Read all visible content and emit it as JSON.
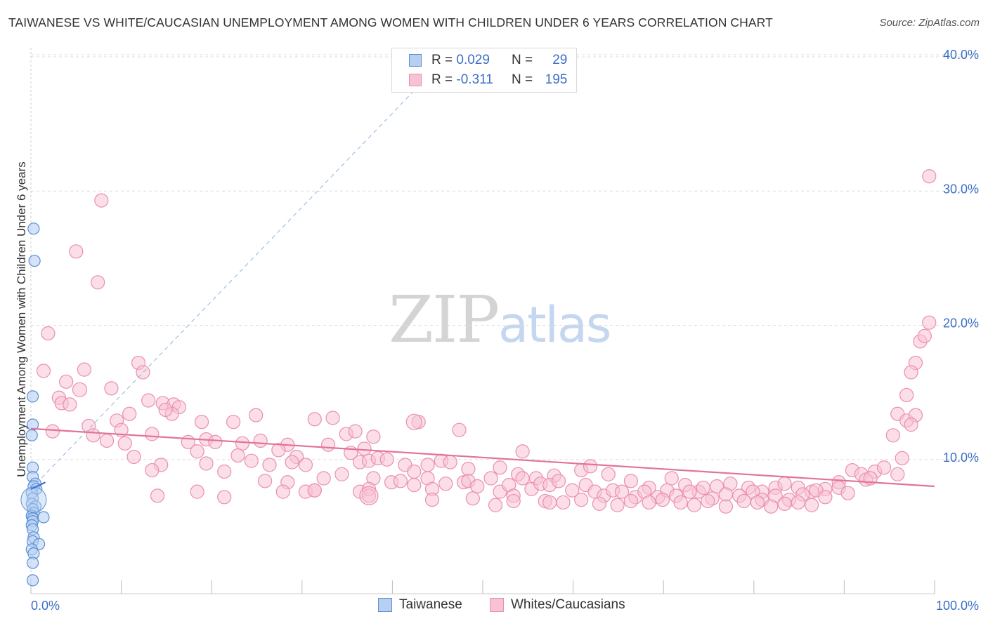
{
  "title": "TAIWANESE VS WHITE/CAUCASIAN UNEMPLOYMENT AMONG WOMEN WITH CHILDREN UNDER 6 YEARS CORRELATION CHART",
  "source": "Source: ZipAtlas.com",
  "watermark": {
    "zip": "ZIP",
    "atlas": "atlas"
  },
  "colors": {
    "blue_fill": "#b7d0f2",
    "blue_stroke": "#5b8fd6",
    "blue_line": "#3a72d4",
    "pink_fill": "#f7c3d3",
    "pink_stroke": "#ea8fae",
    "pink_line": "#e2739a",
    "tick_label": "#3b6fc5",
    "grid": "#dddddd"
  },
  "legend": {
    "rows": [
      {
        "series": "Taiwanese",
        "r_label": "R =",
        "r_value": "0.029",
        "n_label": "N =",
        "n_value": "29"
      },
      {
        "series": "Whites/Caucasians",
        "r_label": "R =",
        "r_value": "-0.311",
        "n_label": "N =",
        "n_value": "195"
      }
    ]
  },
  "chart_data": {
    "type": "scatter",
    "title": "TAIWANESE VS WHITE/CAUCASIAN UNEMPLOYMENT AMONG WOMEN WITH CHILDREN UNDER 6 YEARS CORRELATION CHART",
    "xlabel": "",
    "ylabel": "Unemployment Among Women with Children Under 6 years",
    "xlim": [
      0,
      100
    ],
    "ylim": [
      0,
      40
    ],
    "x_tick_labels": [
      "0.0%",
      "100.0%"
    ],
    "y_ticks": [
      10,
      20,
      30,
      40
    ],
    "y_tick_labels": [
      "10.0%",
      "20.0%",
      "30.0%",
      "40.0%"
    ],
    "legend_placement": "top-center",
    "series": [
      {
        "name": "Taiwanese",
        "r": 0.029,
        "n": 29,
        "points": [
          [
            0.3,
            27.2
          ],
          [
            0.4,
            24.8
          ],
          [
            0.2,
            14.7
          ],
          [
            0.2,
            12.6
          ],
          [
            0.1,
            11.8
          ],
          [
            0.2,
            9.4
          ],
          [
            0.2,
            8.7
          ],
          [
            0.5,
            8.2
          ],
          [
            0.3,
            8.0
          ],
          [
            0.6,
            7.8
          ],
          [
            0.1,
            7.5
          ],
          [
            0.2,
            7.1
          ],
          [
            0.1,
            6.7
          ],
          [
            0.5,
            6.5
          ],
          [
            0.2,
            6.3
          ],
          [
            0.3,
            6.0
          ],
          [
            0.1,
            5.8
          ],
          [
            0.2,
            5.6
          ],
          [
            1.4,
            5.7
          ],
          [
            0.2,
            5.4
          ],
          [
            0.1,
            5.1
          ],
          [
            0.2,
            4.8
          ],
          [
            0.3,
            4.2
          ],
          [
            0.2,
            3.9
          ],
          [
            0.9,
            3.7
          ],
          [
            0.1,
            3.3
          ],
          [
            0.3,
            3.0
          ],
          [
            0.2,
            2.3
          ],
          [
            0.2,
            1.0
          ]
        ],
        "trend_solid": [
          [
            0,
            7.8
          ],
          [
            1.6,
            8.3
          ]
        ],
        "trend_dashed": [
          [
            0,
            7.8
          ],
          [
            46,
            40
          ]
        ]
      },
      {
        "name": "Whites/Caucasians",
        "r": -0.311,
        "n": 195,
        "trend": [
          [
            0,
            12.3
          ],
          [
            100,
            8.0
          ]
        ],
        "points": [
          [
            7.8,
            29.3
          ],
          [
            5.0,
            25.5
          ],
          [
            7.4,
            23.2
          ],
          [
            1.9,
            19.4
          ],
          [
            1.4,
            16.6
          ],
          [
            5.9,
            16.7
          ],
          [
            11.9,
            17.2
          ],
          [
            12.4,
            16.5
          ],
          [
            3.9,
            15.8
          ],
          [
            5.4,
            15.2
          ],
          [
            8.9,
            15.3
          ],
          [
            3.1,
            14.6
          ],
          [
            3.4,
            14.2
          ],
          [
            4.3,
            14.1
          ],
          [
            13.0,
            14.4
          ],
          [
            14.6,
            14.2
          ],
          [
            15.8,
            14.1
          ],
          [
            16.4,
            13.9
          ],
          [
            10.9,
            13.4
          ],
          [
            15.6,
            13.4
          ],
          [
            6.4,
            12.5
          ],
          [
            9.5,
            12.9
          ],
          [
            18.9,
            12.8
          ],
          [
            22.4,
            12.8
          ],
          [
            24.9,
            13.3
          ],
          [
            31.4,
            13.0
          ],
          [
            33.4,
            13.1
          ],
          [
            42.9,
            12.8
          ],
          [
            2.4,
            12.1
          ],
          [
            6.9,
            11.8
          ],
          [
            10.0,
            12.2
          ],
          [
            13.4,
            11.9
          ],
          [
            8.4,
            11.4
          ],
          [
            10.4,
            11.2
          ],
          [
            17.4,
            11.3
          ],
          [
            19.4,
            11.5
          ],
          [
            20.4,
            11.3
          ],
          [
            23.4,
            11.2
          ],
          [
            25.4,
            11.4
          ],
          [
            28.4,
            11.1
          ],
          [
            32.9,
            11.1
          ],
          [
            34.9,
            11.9
          ],
          [
            35.9,
            12.1
          ],
          [
            37.9,
            11.7
          ],
          [
            47.4,
            12.2
          ],
          [
            11.4,
            10.2
          ],
          [
            18.4,
            10.6
          ],
          [
            22.9,
            10.3
          ],
          [
            27.4,
            10.7
          ],
          [
            29.4,
            10.2
          ],
          [
            35.4,
            10.5
          ],
          [
            36.9,
            10.8
          ],
          [
            54.4,
            10.6
          ],
          [
            14.4,
            9.6
          ],
          [
            19.4,
            9.7
          ],
          [
            26.4,
            9.6
          ],
          [
            24.4,
            9.9
          ],
          [
            28.9,
            9.8
          ],
          [
            30.4,
            9.6
          ],
          [
            36.4,
            9.8
          ],
          [
            37.4,
            9.9
          ],
          [
            38.4,
            10.1
          ],
          [
            39.4,
            10.0
          ],
          [
            41.4,
            9.6
          ],
          [
            42.4,
            9.1
          ],
          [
            43.9,
            9.6
          ],
          [
            45.4,
            9.9
          ],
          [
            46.4,
            9.8
          ],
          [
            48.4,
            9.3
          ],
          [
            51.9,
            9.4
          ],
          [
            53.9,
            8.9
          ],
          [
            55.9,
            8.6
          ],
          [
            57.9,
            8.8
          ],
          [
            60.9,
            9.2
          ],
          [
            61.9,
            9.5
          ],
          [
            63.9,
            8.9
          ],
          [
            66.4,
            8.4
          ],
          [
            68.4,
            7.9
          ],
          [
            70.9,
            8.6
          ],
          [
            72.4,
            8.1
          ],
          [
            73.9,
            7.6
          ],
          [
            75.9,
            8.0
          ],
          [
            77.4,
            8.2
          ],
          [
            79.4,
            7.9
          ],
          [
            80.9,
            7.6
          ],
          [
            82.4,
            7.9
          ],
          [
            83.4,
            8.2
          ],
          [
            84.9,
            7.9
          ],
          [
            86.4,
            7.6
          ],
          [
            87.9,
            7.8
          ],
          [
            89.4,
            8.3
          ],
          [
            90.9,
            9.2
          ],
          [
            91.9,
            8.9
          ],
          [
            92.4,
            8.5
          ],
          [
            93.4,
            9.1
          ],
          [
            94.4,
            9.4
          ],
          [
            95.9,
            8.9
          ],
          [
            96.4,
            10.1
          ],
          [
            92.9,
            8.6
          ],
          [
            13.4,
            9.2
          ],
          [
            14.9,
            13.7
          ],
          [
            21.4,
            9.1
          ],
          [
            25.9,
            8.4
          ],
          [
            28.4,
            8.3
          ],
          [
            30.4,
            7.6
          ],
          [
            31.4,
            7.7
          ],
          [
            32.4,
            8.6
          ],
          [
            34.4,
            8.9
          ],
          [
            36.4,
            7.6
          ],
          [
            37.9,
            8.6
          ],
          [
            39.9,
            8.3
          ],
          [
            40.9,
            8.4
          ],
          [
            42.4,
            8.1
          ],
          [
            43.9,
            8.6
          ],
          [
            44.4,
            7.8
          ],
          [
            45.9,
            8.2
          ],
          [
            47.9,
            8.3
          ],
          [
            48.4,
            8.4
          ],
          [
            49.4,
            8.0
          ],
          [
            50.9,
            8.6
          ],
          [
            51.9,
            7.6
          ],
          [
            52.9,
            8.1
          ],
          [
            53.4,
            7.3
          ],
          [
            54.4,
            8.6
          ],
          [
            55.4,
            7.8
          ],
          [
            56.4,
            8.2
          ],
          [
            57.4,
            8.1
          ],
          [
            58.4,
            8.4
          ],
          [
            59.9,
            7.7
          ],
          [
            61.4,
            8.1
          ],
          [
            62.4,
            7.6
          ],
          [
            63.4,
            7.3
          ],
          [
            64.4,
            7.7
          ],
          [
            65.4,
            7.6
          ],
          [
            66.9,
            7.2
          ],
          [
            67.9,
            7.6
          ],
          [
            69.4,
            7.2
          ],
          [
            70.4,
            7.7
          ],
          [
            71.4,
            7.3
          ],
          [
            72.9,
            7.6
          ],
          [
            74.4,
            7.9
          ],
          [
            75.4,
            7.1
          ],
          [
            76.9,
            7.4
          ],
          [
            78.4,
            7.3
          ],
          [
            79.9,
            7.6
          ],
          [
            80.9,
            7.0
          ],
          [
            82.4,
            7.3
          ],
          [
            83.9,
            7.0
          ],
          [
            85.4,
            7.4
          ],
          [
            86.9,
            7.7
          ],
          [
            87.9,
            7.2
          ],
          [
            89.4,
            7.9
          ],
          [
            90.4,
            7.5
          ],
          [
            18.4,
            7.6
          ],
          [
            21.4,
            7.2
          ],
          [
            27.9,
            7.6
          ],
          [
            31.4,
            7.7
          ],
          [
            37.4,
            7.8
          ],
          [
            44.4,
            7.0
          ],
          [
            48.9,
            7.1
          ],
          [
            51.4,
            6.6
          ],
          [
            53.4,
            6.9
          ],
          [
            56.9,
            6.9
          ],
          [
            58.9,
            6.8
          ],
          [
            60.9,
            7.0
          ],
          [
            62.9,
            6.7
          ],
          [
            64.9,
            6.6
          ],
          [
            66.4,
            6.9
          ],
          [
            68.4,
            6.8
          ],
          [
            69.9,
            7.0
          ],
          [
            71.9,
            6.8
          ],
          [
            73.4,
            6.6
          ],
          [
            74.9,
            6.9
          ],
          [
            76.9,
            6.5
          ],
          [
            78.9,
            6.9
          ],
          [
            80.4,
            6.8
          ],
          [
            81.9,
            6.5
          ],
          [
            83.4,
            6.7
          ],
          [
            84.9,
            6.8
          ],
          [
            86.4,
            6.6
          ],
          [
            14.0,
            7.3
          ],
          [
            37.4,
            7.3
          ],
          [
            57.4,
            6.8
          ],
          [
            97.9,
            17.2
          ],
          [
            98.4,
            18.8
          ],
          [
            96.9,
            14.8
          ],
          [
            95.9,
            13.4
          ],
          [
            96.9,
            12.9
          ],
          [
            95.4,
            11.8
          ],
          [
            97.4,
            16.5
          ],
          [
            99.4,
            31.1
          ],
          [
            99.4,
            20.2
          ],
          [
            98.9,
            19.2
          ],
          [
            97.9,
            13.3
          ],
          [
            97.4,
            12.6
          ]
        ]
      }
    ]
  }
}
